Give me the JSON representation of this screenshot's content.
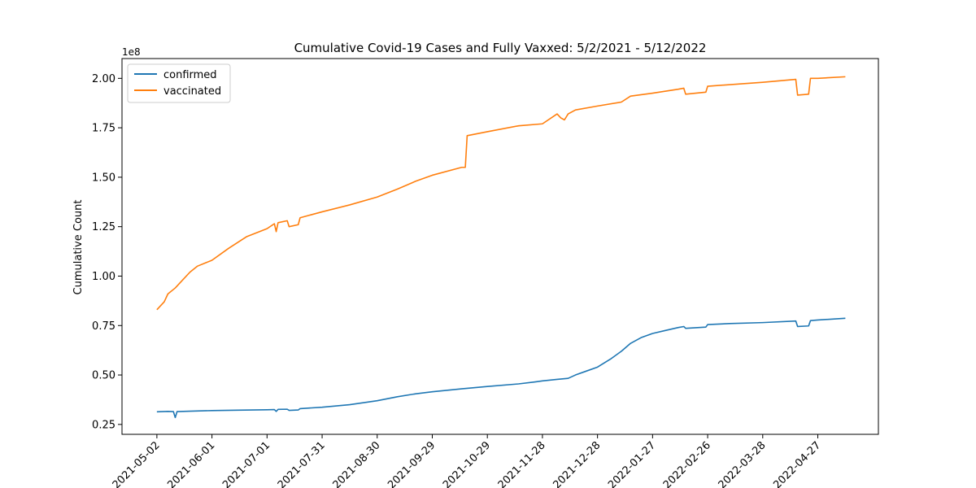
{
  "chart_data": {
    "type": "line",
    "title": "Cumulative Covid-19 Cases and Fully Vaxxed: 5/2/2021 - 5/12/2022",
    "xlabel": "",
    "ylabel": "Cumulative Count",
    "y_offset_label": "1e8",
    "xlim": [
      "2021-04-13",
      "2022-05-30"
    ],
    "ylim": [
      0.2,
      2.1
    ],
    "y_unit_multiplier": 100000000,
    "x_ticks": [
      {
        "date": "2021-05-02",
        "label": "2021-05-02"
      },
      {
        "date": "2021-06-01",
        "label": "2021-06-01"
      },
      {
        "date": "2021-07-01",
        "label": "2021-07-01"
      },
      {
        "date": "2021-07-31",
        "label": "2021-07-31"
      },
      {
        "date": "2021-08-30",
        "label": "2021-08-30"
      },
      {
        "date": "2021-09-29",
        "label": "2021-09-29"
      },
      {
        "date": "2021-10-29",
        "label": "2021-10-29"
      },
      {
        "date": "2021-11-28",
        "label": "2021-11-28"
      },
      {
        "date": "2021-12-28",
        "label": "2021-12-28"
      },
      {
        "date": "2022-01-27",
        "label": "2022-01-27"
      },
      {
        "date": "2022-02-26",
        "label": "2022-02-26"
      },
      {
        "date": "2022-03-28",
        "label": "2022-03-28"
      },
      {
        "date": "2022-04-27",
        "label": "2022-04-27"
      }
    ],
    "y_ticks": [
      {
        "value": 0.25,
        "label": "0.25"
      },
      {
        "value": 0.5,
        "label": "0.50"
      },
      {
        "value": 0.75,
        "label": "0.75"
      },
      {
        "value": 1.0,
        "label": "1.00"
      },
      {
        "value": 1.25,
        "label": "1.25"
      },
      {
        "value": 1.5,
        "label": "1.50"
      },
      {
        "value": 1.75,
        "label": "1.75"
      },
      {
        "value": 2.0,
        "label": "2.00"
      }
    ],
    "grid": false,
    "legend_position": "upper-left",
    "series": [
      {
        "name": "confirmed",
        "color": "#1f77b4",
        "points": [
          [
            "2021-05-02",
            0.314
          ],
          [
            "2021-05-08",
            0.316
          ],
          [
            "2021-05-11",
            0.315
          ],
          [
            "2021-05-12",
            0.285
          ],
          [
            "2021-05-13",
            0.315
          ],
          [
            "2021-05-20",
            0.317
          ],
          [
            "2021-06-01",
            0.32
          ],
          [
            "2021-06-15",
            0.322
          ],
          [
            "2021-07-01",
            0.324
          ],
          [
            "2021-07-05",
            0.325
          ],
          [
            "2021-07-06",
            0.316
          ],
          [
            "2021-07-07",
            0.326
          ],
          [
            "2021-07-12",
            0.327
          ],
          [
            "2021-07-13",
            0.321
          ],
          [
            "2021-07-18",
            0.323
          ],
          [
            "2021-07-19",
            0.33
          ],
          [
            "2021-07-31",
            0.337
          ],
          [
            "2021-08-15",
            0.35
          ],
          [
            "2021-08-30",
            0.37
          ],
          [
            "2021-09-10",
            0.39
          ],
          [
            "2021-09-20",
            0.405
          ],
          [
            "2021-09-29",
            0.415
          ],
          [
            "2021-10-15",
            0.43
          ],
          [
            "2021-10-29",
            0.442
          ],
          [
            "2021-11-15",
            0.455
          ],
          [
            "2021-11-24",
            0.465
          ],
          [
            "2021-11-28",
            0.47
          ],
          [
            "2021-12-06",
            0.478
          ],
          [
            "2021-12-12",
            0.483
          ],
          [
            "2021-12-16",
            0.5
          ],
          [
            "2021-12-22",
            0.52
          ],
          [
            "2021-12-28",
            0.54
          ],
          [
            "2022-01-04",
            0.58
          ],
          [
            "2022-01-10",
            0.62
          ],
          [
            "2022-01-15",
            0.66
          ],
          [
            "2022-01-21",
            0.69
          ],
          [
            "2022-01-27",
            0.71
          ],
          [
            "2022-02-03",
            0.725
          ],
          [
            "2022-02-10",
            0.74
          ],
          [
            "2022-02-13",
            0.745
          ],
          [
            "2022-02-14",
            0.736
          ],
          [
            "2022-02-25",
            0.742
          ],
          [
            "2022-02-26",
            0.755
          ],
          [
            "2022-03-10",
            0.76
          ],
          [
            "2022-03-28",
            0.765
          ],
          [
            "2022-04-15",
            0.773
          ],
          [
            "2022-04-16",
            0.745
          ],
          [
            "2022-04-22",
            0.748
          ],
          [
            "2022-04-23",
            0.775
          ],
          [
            "2022-04-27",
            0.778
          ],
          [
            "2022-05-12",
            0.787
          ]
        ]
      },
      {
        "name": "vaccinated",
        "color": "#ff7f0e",
        "points": [
          [
            "2021-05-02",
            0.83
          ],
          [
            "2021-05-06",
            0.87
          ],
          [
            "2021-05-08",
            0.91
          ],
          [
            "2021-05-12",
            0.94
          ],
          [
            "2021-05-16",
            0.98
          ],
          [
            "2021-05-20",
            1.02
          ],
          [
            "2021-05-24",
            1.05
          ],
          [
            "2021-06-01",
            1.08
          ],
          [
            "2021-06-10",
            1.14
          ],
          [
            "2021-06-20",
            1.2
          ],
          [
            "2021-07-01",
            1.24
          ],
          [
            "2021-07-05",
            1.265
          ],
          [
            "2021-07-06",
            1.225
          ],
          [
            "2021-07-07",
            1.27
          ],
          [
            "2021-07-12",
            1.28
          ],
          [
            "2021-07-13",
            1.25
          ],
          [
            "2021-07-18",
            1.26
          ],
          [
            "2021-07-19",
            1.295
          ],
          [
            "2021-07-31",
            1.325
          ],
          [
            "2021-08-15",
            1.36
          ],
          [
            "2021-08-30",
            1.4
          ],
          [
            "2021-09-10",
            1.44
          ],
          [
            "2021-09-20",
            1.48
          ],
          [
            "2021-09-29",
            1.51
          ],
          [
            "2021-10-15",
            1.55
          ],
          [
            "2021-10-17",
            1.55
          ],
          [
            "2021-10-18",
            1.71
          ],
          [
            "2021-10-29",
            1.73
          ],
          [
            "2021-11-15",
            1.76
          ],
          [
            "2021-11-28",
            1.77
          ],
          [
            "2021-12-06",
            1.82
          ],
          [
            "2021-12-08",
            1.8
          ],
          [
            "2021-12-10",
            1.79
          ],
          [
            "2021-12-12",
            1.82
          ],
          [
            "2021-12-16",
            1.84
          ],
          [
            "2021-12-28",
            1.86
          ],
          [
            "2022-01-10",
            1.88
          ],
          [
            "2022-01-15",
            1.91
          ],
          [
            "2022-01-27",
            1.925
          ],
          [
            "2022-02-10",
            1.945
          ],
          [
            "2022-02-13",
            1.95
          ],
          [
            "2022-02-14",
            1.92
          ],
          [
            "2022-02-25",
            1.93
          ],
          [
            "2022-02-26",
            1.96
          ],
          [
            "2022-03-28",
            1.98
          ],
          [
            "2022-04-15",
            1.995
          ],
          [
            "2022-04-16",
            1.915
          ],
          [
            "2022-04-22",
            1.92
          ],
          [
            "2022-04-23",
            2.0
          ],
          [
            "2022-04-27",
            2.0
          ],
          [
            "2022-05-12",
            2.008
          ]
        ]
      }
    ]
  }
}
